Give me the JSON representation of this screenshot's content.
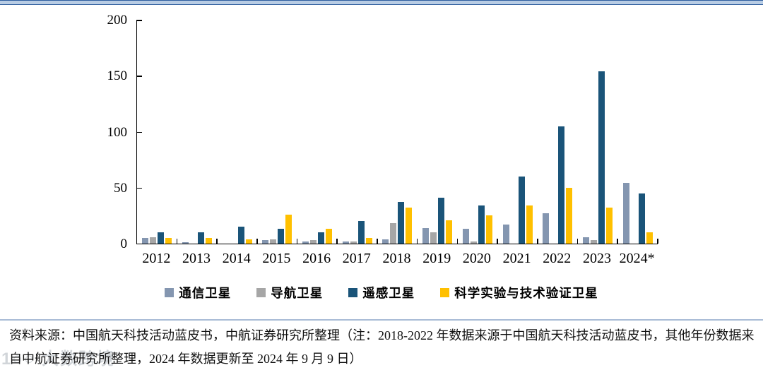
{
  "page": {
    "top_border_color": "#2E5E9E",
    "separator_color": "#A9BCD6",
    "background": "#FFFFFF"
  },
  "chart_data": {
    "type": "bar",
    "title": "",
    "xlabel": "",
    "ylabel": "",
    "categories": [
      "2012",
      "2013",
      "2014",
      "2015",
      "2016",
      "2017",
      "2018",
      "2019",
      "2020",
      "2021",
      "2022",
      "2023",
      "2024*"
    ],
    "series": [
      {
        "name": "通信卫星",
        "color": "#8496B0",
        "values": [
          5,
          1,
          0,
          3,
          2,
          2,
          4,
          14,
          13,
          17,
          27,
          6,
          54
        ]
      },
      {
        "name": "导航卫星",
        "color": "#A6A6A6",
        "values": [
          6,
          0,
          0,
          4,
          3,
          2,
          18,
          10,
          2,
          0,
          0,
          3,
          0
        ]
      },
      {
        "name": "遥感卫星",
        "color": "#1A5479",
        "values": [
          10,
          10,
          15,
          13,
          10,
          20,
          37,
          41,
          34,
          60,
          105,
          154,
          45
        ]
      },
      {
        "name": "科学实验与技术验证卫星",
        "color": "#FFC000",
        "values": [
          5,
          5,
          4,
          26,
          13,
          5,
          32,
          21,
          25,
          34,
          50,
          32,
          10
        ]
      }
    ],
    "ylim": [
      0,
      200
    ],
    "yticks": [
      0,
      50,
      100,
      150,
      200
    ],
    "grid": false,
    "legend_position": "bottom"
  },
  "footer": {
    "source_text": "资料来源：中国航天科技活动蓝皮书，中航证券研究所整理（注：2018-2022 年数据来源于中国航天科技活动蓝皮书，其他年份数据来自中航证券研究所整理，2024 年数据更新至 2024 年 9 月 9 日）"
  },
  "watermark": {
    "logo": "1○○",
    "text": "大数跨境"
  }
}
